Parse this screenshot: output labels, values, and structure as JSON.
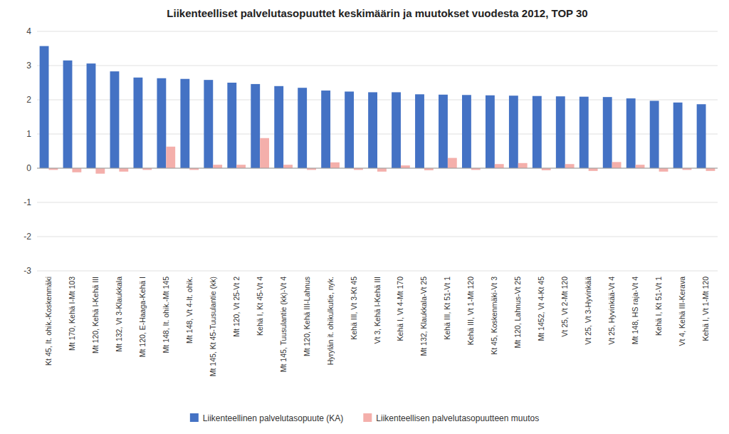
{
  "chart_data": {
    "type": "bar",
    "title": "Liikenteelliset palvelutasopuuttet keskimäärin ja muutokset vuodesta 2012, TOP 30",
    "categories": [
      "Kt 45, It. ohik.-Koskenmäki",
      "Mt 170, Kehä I-Mt 103",
      "Mt 120, Kehä I-Kehä III",
      "Mt 132, Vt 3-Klaukkala",
      "Mt 120, E-Haaga-Kehä I",
      "Mt 148, It. ohik.-Mt 145",
      "Mt 148, Vt 4-It. ohik.",
      "Mt 145, Kt 45-Tuusulantie (kk)",
      "Mt 120, Vt 25-Vt 2",
      "Kehä I, Kt 45-Vt 4",
      "Mt 145, Tuusulantie (kk)-Vt 4",
      "Mt 120, Kehä III-Lahnus",
      "Hyrylän it. ohikulkutie, nyk.",
      "Kehä III, Vt 3-Kt 45",
      "Vt 3, Kehä I-Kehä III",
      "Kehä I, Vt 4-Mt 170",
      "Mt 132, Klaukkala-Vt 25",
      "Kehä III, Kt 51-Vt 1",
      "Kehä III, Vt 1-Mt 120",
      "Kt 45, Koskenmäki-Vt 3",
      "Mt 120, Lahnus-Vt 25",
      "Mt 1452, Vt 4-Kt 45",
      "Vt 25, Vt 2-Mt 120",
      "Vt 25, Vt 3-Hyvinkää",
      "Vt 25, Hyvinkää-Vt 4",
      "Mt 148, HS raja-Vt 4",
      "Kehä I, Kt 51-Vt 1",
      "Vt 4, Kehä III-Kerava",
      "Kehä I, Vt 1-Mt 120"
    ],
    "series": [
      {
        "name": "Liikenteellinen palvelutasopuute (KA)",
        "color": "#4472C4",
        "values": [
          3.57,
          3.15,
          3.06,
          2.83,
          2.65,
          2.63,
          2.61,
          2.58,
          2.5,
          2.46,
          2.4,
          2.35,
          2.27,
          2.24,
          2.22,
          2.22,
          2.16,
          2.15,
          2.14,
          2.13,
          2.12,
          2.11,
          2.1,
          2.09,
          2.08,
          2.04,
          1.97,
          1.92,
          1.87
        ]
      },
      {
        "name": "Liikenteellisen palvelutasopuutteen muutos",
        "color": "#F4AFAB",
        "values": [
          -0.05,
          -0.12,
          -0.16,
          -0.1,
          -0.05,
          0.63,
          -0.05,
          0.1,
          0.1,
          0.88,
          0.1,
          -0.05,
          0.17,
          -0.05,
          -0.1,
          0.08,
          -0.06,
          0.3,
          -0.05,
          0.12,
          0.15,
          -0.06,
          0.12,
          -0.08,
          0.18,
          0.1,
          -0.1,
          -0.05,
          -0.08
        ]
      }
    ],
    "ylim": [
      -3,
      4
    ],
    "yticks": [
      -3,
      -2,
      -1,
      0,
      1,
      2,
      3,
      4
    ],
    "grid": true,
    "legend": "bottom"
  }
}
